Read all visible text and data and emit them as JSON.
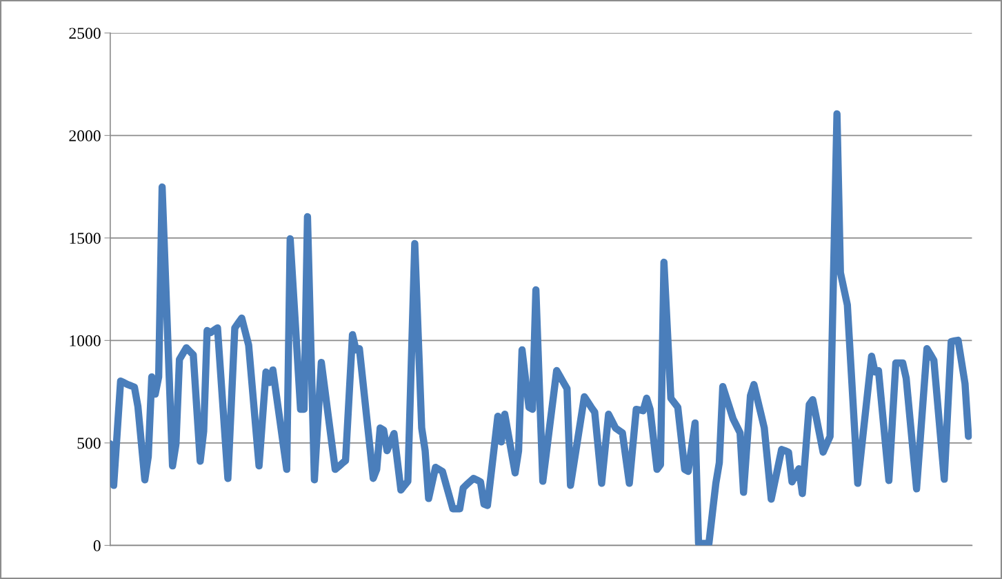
{
  "chart_data": {
    "type": "line",
    "color": "#4a7ebb",
    "grid": "y",
    "tick_labels": "y",
    "marker": "none",
    "line_style": "solid",
    "ylim": [
      0,
      2500
    ],
    "yticks": [
      0,
      500,
      1000,
      1500,
      2000,
      2500
    ],
    "categories": [
      null,
      null,
      null,
      null,
      null,
      null,
      null,
      null,
      null,
      null,
      null,
      null,
      null,
      null,
      null,
      null,
      null,
      null,
      null,
      null,
      null,
      null,
      null,
      null,
      null,
      null,
      null,
      null,
      null,
      null,
      null,
      null,
      null,
      null,
      null,
      null,
      null,
      null,
      null,
      null,
      null,
      null,
      null,
      null,
      null,
      null,
      null,
      null,
      null,
      null,
      null,
      null,
      null,
      null,
      null,
      null,
      null,
      null,
      null,
      null,
      null,
      null,
      null,
      null,
      null,
      null,
      null,
      null,
      null,
      null,
      null,
      null,
      null,
      null,
      null,
      null,
      null,
      null,
      null,
      null,
      null,
      null,
      null,
      null,
      null,
      null,
      null,
      null,
      null,
      null,
      null,
      null,
      null,
      null,
      null,
      null,
      null,
      null,
      null,
      null,
      null,
      null,
      null,
      null,
      null,
      null,
      null,
      null,
      null,
      null,
      null,
      null,
      null,
      null,
      null,
      null,
      null,
      null,
      null,
      null,
      null,
      null,
      null,
      null,
      null,
      null,
      null,
      null,
      null,
      null,
      null,
      null,
      null,
      null,
      null,
      null,
      null,
      null,
      null,
      null,
      null,
      null,
      null,
      null,
      null,
      null,
      null,
      null,
      null,
      null,
      null,
      null,
      null,
      null,
      null,
      null,
      null,
      null,
      null,
      null,
      null,
      null,
      null,
      null,
      null,
      null,
      null,
      null,
      null,
      null,
      null,
      null,
      null,
      null,
      null,
      null,
      null,
      null,
      null,
      null,
      null,
      null,
      null,
      null,
      null,
      null,
      null,
      null,
      null,
      null,
      null,
      null,
      null,
      null,
      null,
      null,
      null,
      null,
      null,
      null,
      null,
      null,
      null,
      null,
      null,
      null,
      null,
      null,
      null,
      null,
      null,
      null,
      null,
      null,
      null,
      null,
      null,
      null,
      null,
      null,
      null,
      null,
      null,
      null,
      null,
      null,
      null,
      null,
      null,
      null,
      null,
      null,
      null,
      null,
      null,
      null,
      null,
      null,
      null,
      null,
      null,
      null,
      null,
      null,
      null,
      null,
      null,
      null,
      null
    ],
    "values": [
      495,
      293,
      548,
      802,
      794,
      785,
      779,
      772,
      678,
      499,
      320,
      435,
      822,
      738,
      822,
      1749,
      1295,
      842,
      388,
      495,
      907,
      936,
      964,
      947,
      930,
      671,
      411,
      556,
      1048,
      1038,
      1050,
      1061,
      816,
      572,
      327,
      694,
      1061,
      1085,
      1109,
      1043,
      977,
      781,
      584,
      388,
      617,
      846,
      795,
      856,
      735,
      614,
      492,
      371,
      1496,
      1219,
      941,
      664,
      664,
      1604,
      962,
      320,
      607,
      893,
      763,
      632,
      502,
      371,
      385,
      400,
      414,
      721,
      1028,
      954,
      960,
      802,
      643,
      485,
      327,
      371,
      573,
      563,
      462,
      504,
      546,
      408,
      270,
      292,
      313,
      893,
      1473,
      1023,
      573,
      462,
      229,
      305,
      381,
      371,
      361,
      300,
      240,
      179,
      179,
      179,
      280,
      297,
      312,
      327,
      319,
      310,
      202,
      195,
      340,
      485,
      630,
      505,
      640,
      545,
      449,
      354,
      462,
      954,
      814,
      674,
      664,
      1247,
      780,
      313,
      448,
      583,
      718,
      853,
      824,
      794,
      765,
      293,
      401,
      509,
      617,
      725,
      700,
      674,
      650,
      477,
      303,
      472,
      640,
      607,
      573,
      561,
      549,
      426,
      303,
      484,
      664,
      661,
      657,
      718,
      664,
      518,
      371,
      394,
      1382,
      1050,
      718,
      696,
      674,
      523,
      371,
      361,
      479,
      597,
      10,
      10,
      10,
      10,
      157,
      303,
      404,
      775,
      722,
      670,
      617,
      583,
      549,
      259,
      495,
      731,
      785,
      714,
      644,
      573,
      400,
      226,
      307,
      387,
      468,
      462,
      455,
      310,
      342,
      374,
      253,
      471,
      688,
      711,
      626,
      540,
      455,
      494,
      532,
      1319,
      2106,
      1331,
      1252,
      1173,
      883,
      593,
      303,
      458,
      613,
      768,
      923,
      846,
      853,
      674,
      496,
      317,
      604,
      890,
      890,
      890,
      816,
      636,
      456,
      276,
      504,
      732,
      960,
      932,
      903,
      710,
      516,
      323,
      659,
      994,
      998,
      1001,
      895,
      789,
      532
    ]
  }
}
